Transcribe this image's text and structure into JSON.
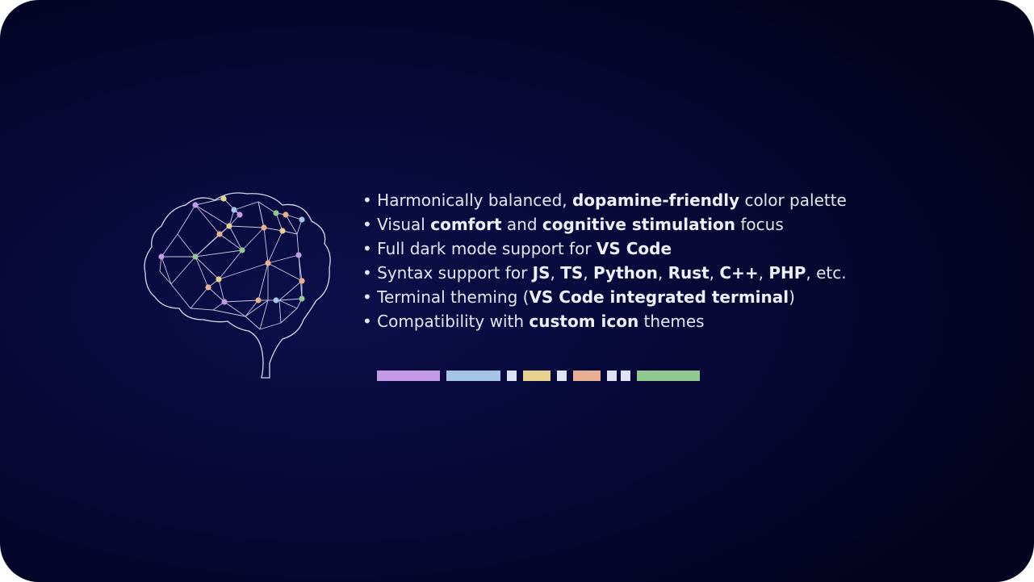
{
  "features": [
    [
      {
        "t": "• Harmonically balanced, "
      },
      {
        "t": "dopamine-friendly",
        "b": true
      },
      {
        "t": " color palette"
      }
    ],
    [
      {
        "t": "• Visual "
      },
      {
        "t": "comfort",
        "b": true
      },
      {
        "t": " and "
      },
      {
        "t": "cognitive stimulation",
        "b": true
      },
      {
        "t": " focus"
      }
    ],
    [
      {
        "t": "• Full dark mode support for "
      },
      {
        "t": "VS Code",
        "b": true
      }
    ],
    [
      {
        "t": "• Syntax support for "
      },
      {
        "t": "JS",
        "b": true
      },
      {
        "t": ", "
      },
      {
        "t": "TS",
        "b": true
      },
      {
        "t": ", "
      },
      {
        "t": "Python",
        "b": true
      },
      {
        "t": ", "
      },
      {
        "t": "Rust",
        "b": true
      },
      {
        "t": ", "
      },
      {
        "t": "C++",
        "b": true
      },
      {
        "t": ", "
      },
      {
        "t": "PHP",
        "b": true
      },
      {
        "t": ", etc."
      }
    ],
    [
      {
        "t": "• Terminal theming ("
      },
      {
        "t": "VS Code integrated terminal",
        "b": true
      },
      {
        "t": ")"
      }
    ],
    [
      {
        "t": "• Compatibility with "
      },
      {
        "t": "custom icon",
        "b": true
      },
      {
        "t": " themes"
      }
    ]
  ],
  "palette": {
    "colors": [
      "#c39ae6",
      "#a6c4e6",
      "#e0e2f4",
      "#e6d28f",
      "#e0e2f4",
      "#e8b093",
      "#e0e2f4",
      "#e0e2f4",
      "#8fc98f"
    ]
  },
  "brain": {
    "outline_color": "#d5d7ee",
    "node_colors": [
      "#c39ae6",
      "#a6c4e6",
      "#e6d28f",
      "#e8b093",
      "#8fc98f"
    ]
  }
}
